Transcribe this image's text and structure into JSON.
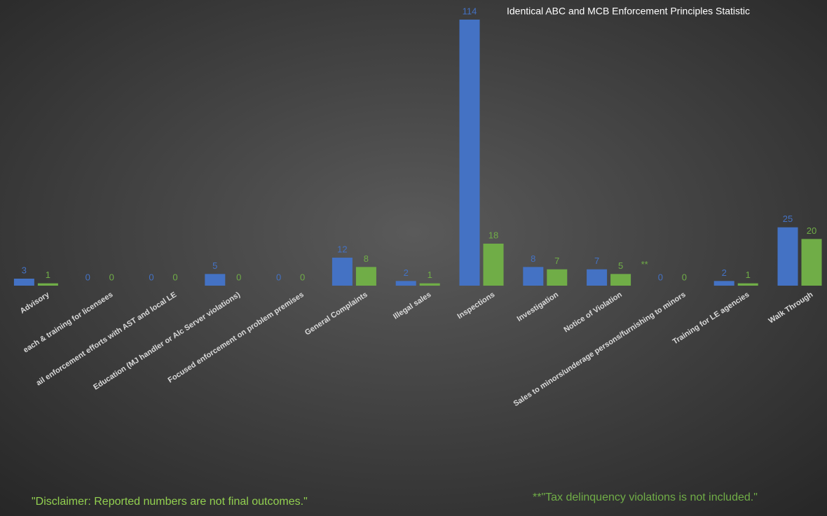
{
  "chart_data": {
    "type": "bar",
    "title": "Identical ABC and MCB Enforcement Principles Statistic",
    "categories": [
      "Advisory",
      "each & training for licensees",
      "ail enforcement efforts with AST and local LE",
      "Education (MJ handler or Alc Server violations)",
      "Focused enforcement on problem premises",
      "General Complaints",
      "Illegal sales",
      "Inspections",
      "Investigation",
      "Notice of Violation",
      "Sales to minors/underage persons/furnishing to minors",
      "Training for LE agencies",
      "Walk Through"
    ],
    "series": [
      {
        "color": "#4472c4",
        "values": [
          3,
          0,
          0,
          5,
          0,
          12,
          2,
          114,
          8,
          7,
          0,
          2,
          25
        ]
      },
      {
        "color": "#70ad47",
        "values": [
          1,
          0,
          0,
          0,
          0,
          8,
          1,
          18,
          7,
          5,
          0,
          1,
          20
        ]
      }
    ],
    "annotation": "**",
    "notes": [
      "\"Disclaimer: Reported numbers are not final outcomes.\"",
      "**\"Tax delinquency violations is not included.\""
    ]
  }
}
